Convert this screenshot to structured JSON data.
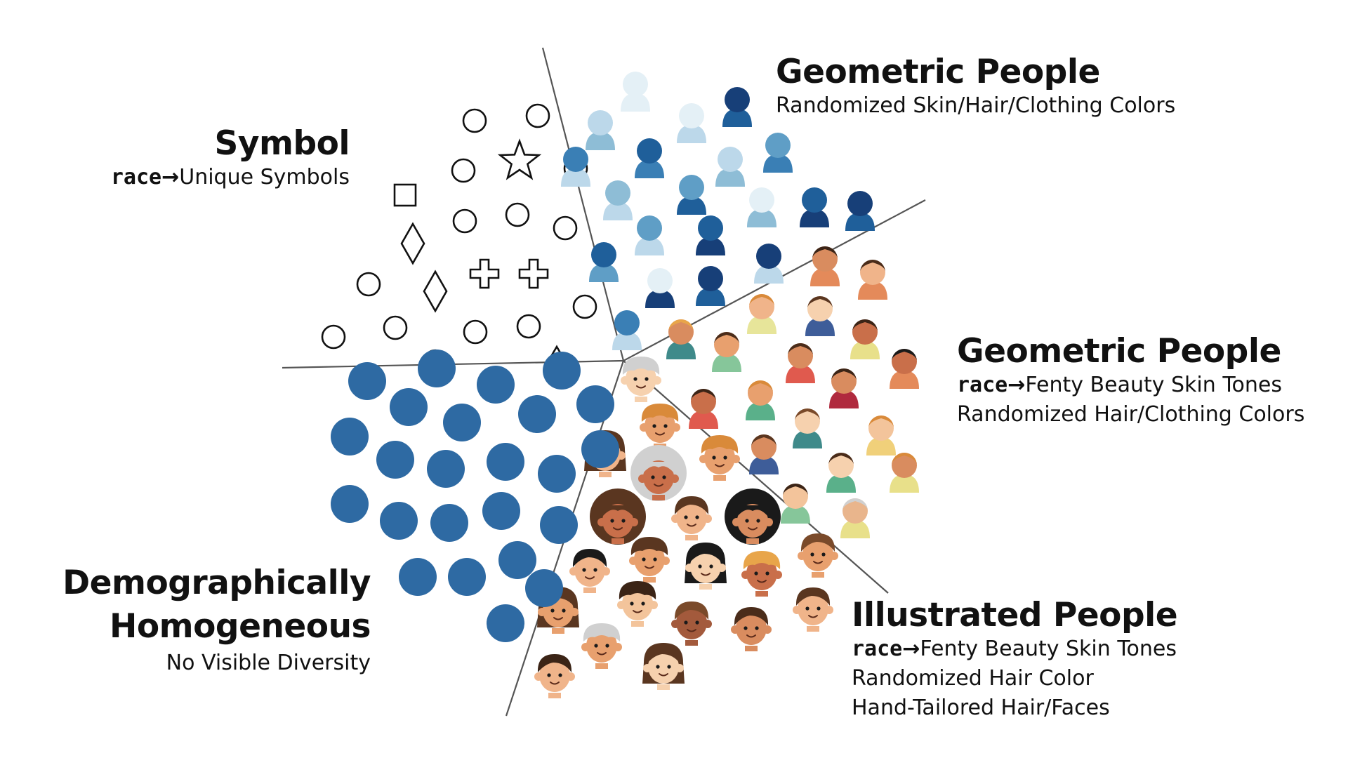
{
  "sections": {
    "symbol": {
      "title": "Symbol",
      "mapping_code": "race",
      "arrow": "→",
      "mapping_text": "Unique Symbols"
    },
    "geometric_random": {
      "title": "Geometric People",
      "line1": "Randomized Skin/Hair/Clothing Colors"
    },
    "geometric_fenty": {
      "title": "Geometric People",
      "mapping_code": "race",
      "arrow": "→",
      "mapping_text": "Fenty Beauty Skin Tones",
      "line2": "Randomized Hair/Clothing Colors"
    },
    "illustrated": {
      "title": "Illustrated People",
      "mapping_code": "race",
      "arrow": "→",
      "mapping_text": "Fenty Beauty Skin Tones",
      "line2": "Randomized Hair Color",
      "line3": "Hand-Tailored Hair/Faces"
    },
    "homogeneous": {
      "title_line1": "Demographically",
      "title_line2": "Homogeneous",
      "subtitle": "No Visible Diversity"
    }
  },
  "colors": {
    "ink": "#111111",
    "divider": "#555555",
    "dot_blue": "#2e6aa3",
    "blue_shades": [
      "#bcd8ea",
      "#8ebdd6",
      "#5f9ec6",
      "#3a7fb5",
      "#1f5f9a",
      "#173f78",
      "#e4f0f6"
    ],
    "skin_tones": [
      "#f6d1ae",
      "#f0b48a",
      "#e8a06e",
      "#d98c5f",
      "#c96f4a",
      "#a35a3c",
      "#f3c49b",
      "#e9b58c"
    ],
    "clothing_colors": [
      "#e7e59a",
      "#86c69a",
      "#e05a4e",
      "#3e5d99",
      "#e48a5a",
      "#3f8a8a",
      "#b02a3e",
      "#f0d07a",
      "#5ab08a",
      "#e8e08a"
    ],
    "hair_colors": [
      "#3b2416",
      "#5a3620",
      "#1a1a1a",
      "#7a4a2a",
      "#d0d0d0",
      "#d98a3a",
      "#e8a54a",
      "#4a2c1a"
    ]
  },
  "icons": {
    "symbol_shapes": [
      "circle-icon",
      "star-icon",
      "square-icon",
      "diamond-icon",
      "cross-icon",
      "triangle-icon"
    ],
    "person": "person-icon",
    "face": "face-icon",
    "dot": "dot-icon"
  }
}
